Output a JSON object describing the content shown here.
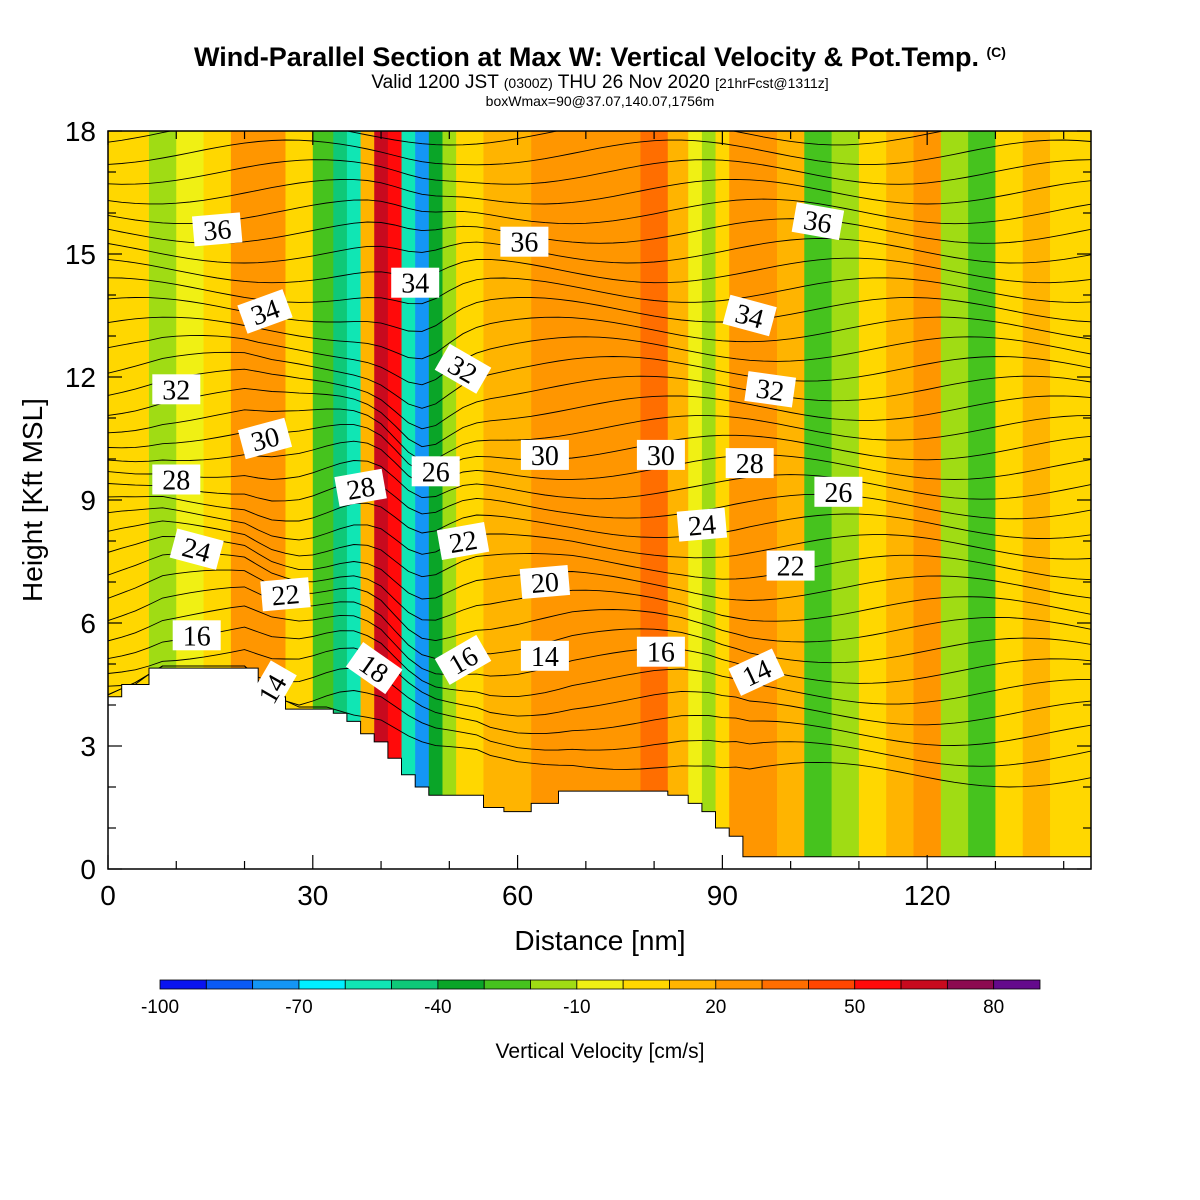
{
  "header": {
    "title": "Wind-Parallel Section at Max W: Vertical Velocity & Pot.Temp.",
    "copyright": "(C)",
    "valid_pre": "Valid 1200 JST",
    "valid_z": "(0300Z)",
    "valid_date": "THU 26 Nov 2020",
    "fcst": "[21hrFcst@1311z]",
    "box": "boxWmax=90@37.07,140.07,1756m"
  },
  "chart_data": {
    "type": "heatmap",
    "xlabel": "Distance [nm]",
    "ylabel": "Height [Kft MSL]",
    "xlim": [
      0,
      144
    ],
    "ylim": [
      0,
      18
    ],
    "x_ticks": [
      0,
      30,
      60,
      90,
      120
    ],
    "y_ticks": [
      0,
      3,
      6,
      9,
      12,
      15,
      18
    ],
    "colorbar": {
      "label": "Vertical Velocity [cm/s]",
      "ticks": [
        -100,
        -70,
        -40,
        -10,
        20,
        50,
        80
      ],
      "colors": [
        "#0a14f0",
        "#0a5af5",
        "#1496f5",
        "#00f0ff",
        "#10e6b4",
        "#0fc878",
        "#0aa528",
        "#46c31e",
        "#a0dc14",
        "#f0f014",
        "#ffd700",
        "#ffb400",
        "#ff9600",
        "#ff6e00",
        "#ff4600",
        "#ff0a0a",
        "#c80a1e",
        "#8c0a50",
        "#640a8c"
      ]
    },
    "columns_x": [
      0,
      4,
      8,
      12,
      16,
      20,
      24,
      28,
      32,
      34,
      36,
      38,
      40,
      42,
      44,
      46,
      48,
      50,
      52,
      54,
      56,
      60,
      64,
      68,
      72,
      76,
      80,
      84,
      86,
      88,
      90,
      92,
      94,
      96,
      100,
      104,
      108,
      112,
      116,
      120,
      124,
      128,
      132,
      136,
      140,
      144
    ],
    "vertical_velocity_cm_s": [
      5,
      0,
      -12,
      -10,
      8,
      22,
      26,
      5,
      -30,
      -45,
      -55,
      15,
      60,
      50,
      -55,
      -75,
      -35,
      -20,
      0,
      5,
      10,
      15,
      25,
      22,
      20,
      25,
      30,
      15,
      -10,
      -15,
      5,
      20,
      25,
      25,
      10,
      -25,
      -20,
      5,
      15,
      20,
      -15,
      -25,
      0,
      15,
      8,
      5
    ],
    "terrain_top_kft": [
      4.2,
      4.5,
      4.9,
      4.9,
      4.9,
      4.9,
      4.2,
      3.9,
      3.9,
      3.8,
      3.6,
      3.3,
      3.1,
      2.7,
      2.3,
      2.0,
      1.8,
      1.8,
      1.8,
      1.8,
      1.5,
      1.4,
      1.6,
      1.9,
      1.9,
      1.9,
      1.9,
      1.8,
      1.6,
      1.4,
      1.0,
      0.8,
      0.3,
      0.3,
      0.3,
      0.3,
      0.3,
      0.3,
      0.3,
      0.3,
      0.3,
      0.3,
      0.3,
      0.3,
      0.3,
      0.3
    ],
    "theta_labels": [
      {
        "text": "36",
        "x": 16,
        "y": 15.6,
        "rot": -5
      },
      {
        "text": "36",
        "x": 61,
        "y": 15.3,
        "rot": 0
      },
      {
        "text": "36",
        "x": 104,
        "y": 15.8,
        "rot": 10
      },
      {
        "text": "34",
        "x": 23,
        "y": 13.6,
        "rot": -20
      },
      {
        "text": "34",
        "x": 45,
        "y": 14.3,
        "rot": 0
      },
      {
        "text": "34",
        "x": 94,
        "y": 13.5,
        "rot": 15
      },
      {
        "text": "32",
        "x": 10,
        "y": 11.7,
        "rot": 0
      },
      {
        "text": "32",
        "x": 52,
        "y": 12.2,
        "rot": 30
      },
      {
        "text": "32",
        "x": 97,
        "y": 11.7,
        "rot": 8
      },
      {
        "text": "30",
        "x": 23,
        "y": 10.5,
        "rot": -15
      },
      {
        "text": "30",
        "x": 64,
        "y": 10.1,
        "rot": 0
      },
      {
        "text": "30",
        "x": 81,
        "y": 10.1,
        "rot": 0
      },
      {
        "text": "28",
        "x": 10,
        "y": 9.5,
        "rot": 0
      },
      {
        "text": "28",
        "x": 37,
        "y": 9.3,
        "rot": -10
      },
      {
        "text": "28",
        "x": 94,
        "y": 9.9,
        "rot": 0
      },
      {
        "text": "26",
        "x": 48,
        "y": 9.7,
        "rot": 0
      },
      {
        "text": "26",
        "x": 107,
        "y": 9.2,
        "rot": 0
      },
      {
        "text": "24",
        "x": 13,
        "y": 7.8,
        "rot": 15
      },
      {
        "text": "24",
        "x": 87,
        "y": 8.4,
        "rot": -5
      },
      {
        "text": "22",
        "x": 26,
        "y": 6.7,
        "rot": -5
      },
      {
        "text": "22",
        "x": 52,
        "y": 8.0,
        "rot": -10
      },
      {
        "text": "22",
        "x": 100,
        "y": 7.4,
        "rot": 0
      },
      {
        "text": "20",
        "x": 64,
        "y": 7.0,
        "rot": -5
      },
      {
        "text": "16",
        "x": 13,
        "y": 5.7,
        "rot": 0
      },
      {
        "text": "16",
        "x": 52,
        "y": 5.1,
        "rot": -30
      },
      {
        "text": "16",
        "x": 81,
        "y": 5.3,
        "rot": 0
      },
      {
        "text": "18",
        "x": 39,
        "y": 4.9,
        "rot": 35
      },
      {
        "text": "14",
        "x": 24,
        "y": 4.4,
        "rot": -60
      },
      {
        "text": "14",
        "x": 64,
        "y": 5.2,
        "rot": 0
      },
      {
        "text": "14",
        "x": 95,
        "y": 4.8,
        "rot": -25
      }
    ]
  }
}
